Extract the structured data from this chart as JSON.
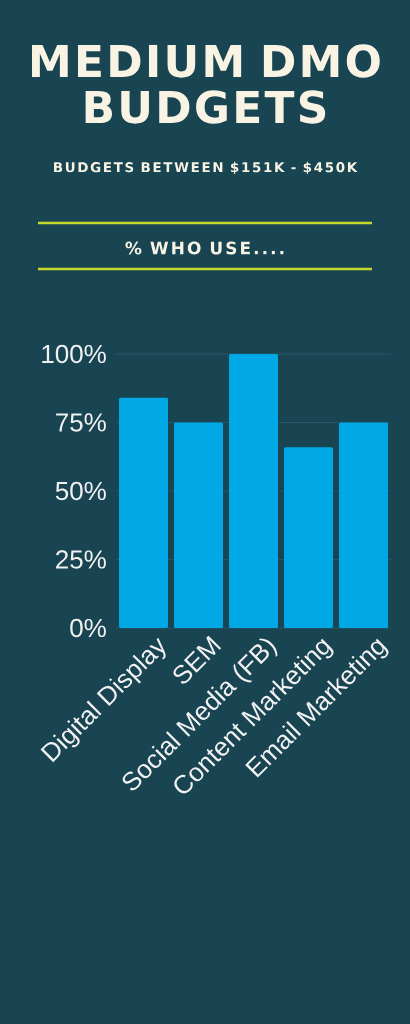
{
  "chart_data": {
    "type": "bar",
    "title": "MEDIUM DMO BUDGETS",
    "subtitle": "BUDGETS BETWEEN $151K - $450K",
    "annotations": [
      "% WHO USE...."
    ],
    "categories": [
      "Digital Display",
      "SEM",
      "Social Media (FB)",
      "Content Marketing",
      "Email Marketing"
    ],
    "values": [
      84,
      75,
      100,
      66,
      75
    ],
    "color": "#00a9e6",
    "ylim": [
      0,
      100
    ],
    "yticks": [
      {
        "value": 0,
        "label": "0%"
      },
      {
        "value": 25,
        "label": "25%"
      },
      {
        "value": 50,
        "label": "50%"
      },
      {
        "value": 75,
        "label": "75%"
      },
      {
        "value": 100,
        "label": "100%"
      }
    ],
    "grid": "y"
  }
}
